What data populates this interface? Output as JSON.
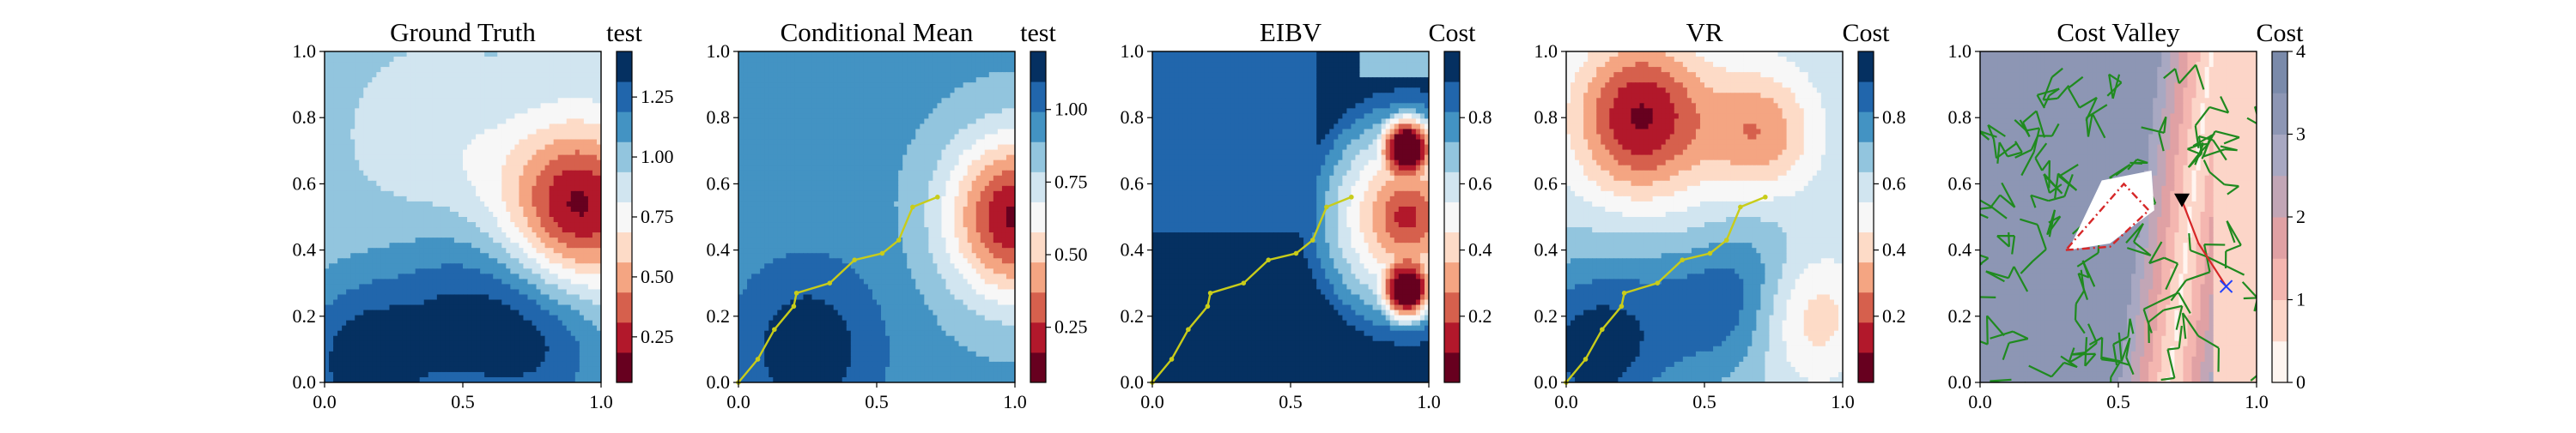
{
  "figure": {
    "panels": [
      {
        "key": "ground_truth",
        "title": "Ground Truth",
        "colorbar_title": "test",
        "colorbar_ticks": [
          "0.25",
          "0.50",
          "0.75",
          "1.00",
          "1.25"
        ],
        "colorbar_values": [
          0.25,
          0.5,
          0.75,
          1.0,
          1.25
        ],
        "colorbar_range": [
          0.06,
          1.44
        ],
        "palette": [
          "#67001f",
          "#b2182b",
          "#d6604d",
          "#f4a582",
          "#fddbc7",
          "#f7f7f7",
          "#d1e5f0",
          "#92c5de",
          "#4393c3",
          "#2166ac",
          "#053061"
        ],
        "has_path": false
      },
      {
        "key": "conditional_mean",
        "title": "Conditional Mean",
        "colorbar_title": "test",
        "colorbar_ticks": [
          "0.25",
          "0.50",
          "0.75",
          "1.00"
        ],
        "colorbar_values": [
          0.25,
          0.5,
          0.75,
          1.0
        ],
        "colorbar_range": [
          0.06,
          1.2
        ],
        "palette": [
          "#67001f",
          "#b2182b",
          "#d6604d",
          "#f4a582",
          "#fddbc7",
          "#f7f7f7",
          "#d1e5f0",
          "#92c5de",
          "#4393c3",
          "#2166ac",
          "#053061"
        ],
        "has_path": true
      },
      {
        "key": "eibv",
        "title": "EIBV",
        "colorbar_title": "Cost",
        "colorbar_ticks": [
          "0.2",
          "0.4",
          "0.6",
          "0.8"
        ],
        "colorbar_values": [
          0.2,
          0.4,
          0.6,
          0.8
        ],
        "colorbar_range": [
          0.0,
          1.0
        ],
        "palette": [
          "#67001f",
          "#b2182b",
          "#d6604d",
          "#f4a582",
          "#fddbc7",
          "#f7f7f7",
          "#d1e5f0",
          "#92c5de",
          "#4393c3",
          "#2166ac",
          "#053061"
        ],
        "has_path": true
      },
      {
        "key": "vr",
        "title": "VR",
        "colorbar_title": "Cost",
        "colorbar_ticks": [
          "0.2",
          "0.4",
          "0.6",
          "0.8"
        ],
        "colorbar_values": [
          0.2,
          0.4,
          0.6,
          0.8
        ],
        "colorbar_range": [
          0.0,
          1.0
        ],
        "palette": [
          "#67001f",
          "#b2182b",
          "#d6604d",
          "#f4a582",
          "#fddbc7",
          "#f7f7f7",
          "#d1e5f0",
          "#92c5de",
          "#4393c3",
          "#2166ac",
          "#053061"
        ],
        "has_path": true
      },
      {
        "key": "cost_valley",
        "title": "Cost Valley",
        "colorbar_title": "Cost",
        "colorbar_ticks": [
          "0",
          "1",
          "2",
          "3",
          "4"
        ],
        "colorbar_values": [
          0,
          1,
          2,
          3,
          4
        ],
        "colorbar_range": [
          0,
          4
        ],
        "palette": [
          "#fff5f0",
          "#fcd5c8",
          "#f4b6b0",
          "#e0a1a4",
          "#c2a6b6",
          "#a8a8c2",
          "#8d96b4",
          "#7a8aaa"
        ],
        "has_path": false
      }
    ],
    "x_ticks": [
      "0.0",
      "0.5",
      "1.0"
    ],
    "x_tick_values": [
      0.0,
      0.5,
      1.0
    ],
    "y_ticks": [
      "0.0",
      "0.2",
      "0.4",
      "0.6",
      "0.8",
      "1.0"
    ],
    "y_tick_values": [
      0.0,
      0.2,
      0.4,
      0.6,
      0.8,
      1.0
    ],
    "colors": {
      "path": "#c8cc1a",
      "tree": "#1f8a1f",
      "candidate": "#d62728",
      "current_marker": "#000000",
      "target_marker": "#1f3fff",
      "obstacle": "#ffffff"
    }
  },
  "chart_data": [
    {
      "type": "heatmap",
      "title": "Ground Truth",
      "colorbar_label": "test",
      "xlim": [
        0,
        1
      ],
      "ylim": [
        0,
        1
      ],
      "colorbar_ticks": [
        0.25,
        0.5,
        0.75,
        1.0,
        1.25
      ],
      "features": [
        {
          "kind": "low",
          "center": [
            0.92,
            0.53
          ],
          "value": 0.06
        },
        {
          "kind": "low",
          "center": [
            0.38,
            0.72
          ],
          "value": 0.85
        },
        {
          "kind": "low",
          "center": [
            0.62,
            0.63
          ],
          "value": 0.85
        },
        {
          "kind": "low",
          "center": [
            0.36,
            0.08
          ],
          "value": 0.9
        },
        {
          "kind": "high",
          "center": [
            0.14,
            0.06
          ],
          "value": 1.44
        },
        {
          "kind": "high",
          "center": [
            0.5,
            0.18
          ],
          "value": 1.32
        },
        {
          "kind": "high",
          "center": [
            0.8,
            0.12
          ],
          "value": 1.3
        }
      ]
    },
    {
      "type": "heatmap",
      "title": "Conditional Mean",
      "colorbar_label": "test",
      "xlim": [
        0,
        1
      ],
      "ylim": [
        0,
        1
      ],
      "colorbar_ticks": [
        0.25,
        0.5,
        0.75,
        1.0
      ],
      "features": [
        {
          "kind": "low",
          "center": [
            1.0,
            0.5
          ],
          "value": 0.06
        },
        {
          "kind": "high",
          "center": [
            0.25,
            0.1
          ],
          "value": 1.2
        }
      ],
      "path": {
        "x": [
          0.0,
          0.07,
          0.13,
          0.2,
          0.21,
          0.33,
          0.42,
          0.52,
          0.58,
          0.63,
          0.72
        ],
        "y": [
          0.0,
          0.07,
          0.16,
          0.23,
          0.27,
          0.3,
          0.37,
          0.39,
          0.43,
          0.53,
          0.56
        ]
      }
    },
    {
      "type": "heatmap",
      "title": "EIBV",
      "colorbar_label": "Cost",
      "xlim": [
        0,
        1
      ],
      "ylim": [
        0,
        1
      ],
      "colorbar_ticks": [
        0.2,
        0.4,
        0.6,
        0.8
      ],
      "features": [
        {
          "kind": "low",
          "center": [
            0.92,
            0.72
          ],
          "value": 0.05
        },
        {
          "kind": "low",
          "center": [
            0.92,
            0.27
          ],
          "value": 0.05
        },
        {
          "kind": "high",
          "center": [
            0.1,
            0.1
          ],
          "value": 1.0
        },
        {
          "kind": "high",
          "center": [
            0.1,
            0.98
          ],
          "value": 1.0
        }
      ],
      "path": {
        "x": [
          0.0,
          0.07,
          0.13,
          0.2,
          0.21,
          0.33,
          0.42,
          0.52,
          0.58,
          0.63,
          0.72
        ],
        "y": [
          0.0,
          0.07,
          0.16,
          0.23,
          0.27,
          0.3,
          0.37,
          0.39,
          0.43,
          0.53,
          0.56
        ]
      }
    },
    {
      "type": "heatmap",
      "title": "VR",
      "colorbar_label": "Cost",
      "xlim": [
        0,
        1
      ],
      "ylim": [
        0,
        1
      ],
      "colorbar_ticks": [
        0.2,
        0.4,
        0.6,
        0.8
      ],
      "features": [
        {
          "kind": "low",
          "center": [
            0.27,
            0.8
          ],
          "value": 0.02
        },
        {
          "kind": "low",
          "center": [
            0.7,
            0.75
          ],
          "value": 0.25
        },
        {
          "kind": "low",
          "center": [
            0.88,
            0.2
          ],
          "value": 0.35
        },
        {
          "kind": "low",
          "center": [
            0.5,
            0.42
          ],
          "value": 0.45
        },
        {
          "kind": "high",
          "center": [
            0.1,
            0.1
          ],
          "value": 1.0
        },
        {
          "kind": "high",
          "center": [
            0.55,
            0.3
          ],
          "value": 1.0
        }
      ],
      "path": {
        "x": [
          0.0,
          0.07,
          0.13,
          0.2,
          0.21,
          0.33,
          0.42,
          0.52,
          0.58,
          0.63,
          0.72
        ],
        "y": [
          0.0,
          0.07,
          0.16,
          0.23,
          0.27,
          0.3,
          0.37,
          0.39,
          0.43,
          0.53,
          0.56
        ]
      }
    },
    {
      "type": "heatmap",
      "title": "Cost Valley",
      "colorbar_label": "Cost",
      "xlim": [
        0,
        1
      ],
      "ylim": [
        0,
        1
      ],
      "colorbar_ticks": [
        0,
        1,
        2,
        3,
        4
      ],
      "features": [
        {
          "kind": "low",
          "center": [
            0.73,
            0.5
          ],
          "value": 0.0
        },
        {
          "kind": "high",
          "center": [
            0.2,
            0.5
          ],
          "value": 2.6
        },
        {
          "kind": "high",
          "center": [
            0.95,
            0.15
          ],
          "value": 1.2
        }
      ],
      "obstacle": {
        "x": [
          0.32,
          0.47,
          0.63,
          0.62,
          0.44
        ],
        "y": [
          0.4,
          0.42,
          0.52,
          0.64,
          0.61
        ]
      },
      "candidate_polygon": {
        "x": [
          0.31,
          0.47,
          0.61,
          0.52
        ],
        "y": [
          0.4,
          0.41,
          0.52,
          0.6
        ]
      },
      "current_location": {
        "x": 0.73,
        "y": 0.55
      },
      "target_location": {
        "x": 0.89,
        "y": 0.29
      },
      "planned_segment": {
        "x": [
          0.73,
          0.79,
          0.89
        ],
        "y": [
          0.55,
          0.42,
          0.29
        ]
      }
    }
  ]
}
